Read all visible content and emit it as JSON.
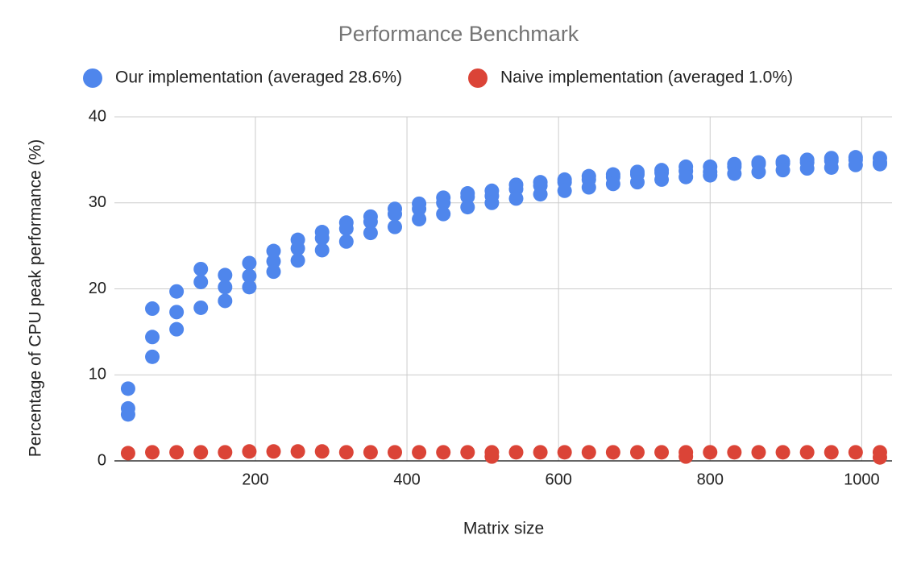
{
  "chart_data": {
    "type": "scatter",
    "title": "Performance Benchmark",
    "x_label": "Matrix size",
    "y_label": "Percentage of CPU peak performance (%)",
    "xlim": [
      14,
      1040
    ],
    "ylim": [
      0,
      40
    ],
    "xticks": [
      200,
      400,
      600,
      800,
      1000
    ],
    "yticks": [
      0,
      10,
      20,
      30,
      40
    ],
    "grid": true,
    "legend": "top",
    "series": [
      {
        "name": "Our implementation (averaged 28.6%)",
        "color": "#4f86ec",
        "x": [
          32,
          32,
          32,
          64,
          64,
          64,
          96,
          96,
          96,
          128,
          128,
          128,
          160,
          160,
          160,
          192,
          192,
          192,
          224,
          224,
          224,
          256,
          256,
          256,
          288,
          288,
          288,
          320,
          320,
          320,
          352,
          352,
          352,
          384,
          384,
          384,
          416,
          416,
          416,
          448,
          448,
          448,
          480,
          480,
          480,
          512,
          512,
          512,
          544,
          544,
          544,
          576,
          576,
          576,
          608,
          608,
          608,
          640,
          640,
          640,
          672,
          672,
          672,
          704,
          704,
          704,
          736,
          736,
          736,
          768,
          768,
          768,
          800,
          800,
          800,
          832,
          832,
          832,
          864,
          864,
          864,
          896,
          896,
          896,
          928,
          928,
          928,
          960,
          960,
          960,
          992,
          992,
          992,
          1024,
          1024,
          1024
        ],
        "values": [
          8.4,
          6.1,
          5.4,
          17.7,
          14.4,
          12.1,
          19.7,
          17.3,
          15.3,
          22.3,
          20.8,
          17.8,
          21.6,
          20.2,
          18.6,
          23.0,
          21.5,
          20.2,
          24.4,
          23.2,
          22.0,
          25.7,
          24.7,
          23.3,
          26.6,
          25.9,
          24.5,
          27.7,
          27.0,
          25.5,
          28.4,
          27.8,
          26.5,
          29.3,
          28.7,
          27.2,
          29.9,
          29.3,
          28.1,
          30.6,
          30.0,
          28.7,
          31.1,
          30.7,
          29.5,
          31.4,
          30.8,
          30.0,
          32.1,
          31.6,
          30.5,
          32.4,
          32.0,
          31.0,
          32.7,
          32.4,
          31.4,
          33.1,
          32.7,
          31.8,
          33.3,
          33.0,
          32.2,
          33.6,
          33.3,
          32.4,
          33.8,
          33.5,
          32.7,
          34.2,
          33.7,
          33.0,
          34.2,
          33.6,
          33.2,
          34.5,
          34.2,
          33.4,
          34.7,
          34.5,
          33.6,
          34.8,
          34.6,
          33.8,
          35.0,
          34.7,
          34.0,
          35.2,
          34.9,
          34.1,
          35.3,
          35.0,
          34.4,
          35.2,
          34.7,
          34.5
        ]
      },
      {
        "name": "Naive implementation (averaged 1.0%)",
        "color": "#db4437",
        "x": [
          32,
          64,
          96,
          128,
          160,
          192,
          224,
          256,
          288,
          320,
          352,
          384,
          416,
          448,
          480,
          512,
          544,
          576,
          608,
          640,
          672,
          704,
          736,
          768,
          800,
          832,
          864,
          896,
          928,
          960,
          992,
          1024,
          512,
          768,
          1024
        ],
        "values": [
          0.9,
          1.0,
          1.0,
          1.0,
          1.0,
          1.1,
          1.1,
          1.1,
          1.1,
          1.0,
          1.0,
          1.0,
          1.0,
          1.0,
          1.0,
          1.0,
          1.0,
          1.0,
          1.0,
          1.0,
          1.0,
          1.0,
          1.0,
          1.0,
          1.0,
          1.0,
          1.0,
          1.0,
          1.0,
          1.0,
          1.0,
          1.0,
          0.5,
          0.5,
          0.4
        ]
      }
    ]
  }
}
